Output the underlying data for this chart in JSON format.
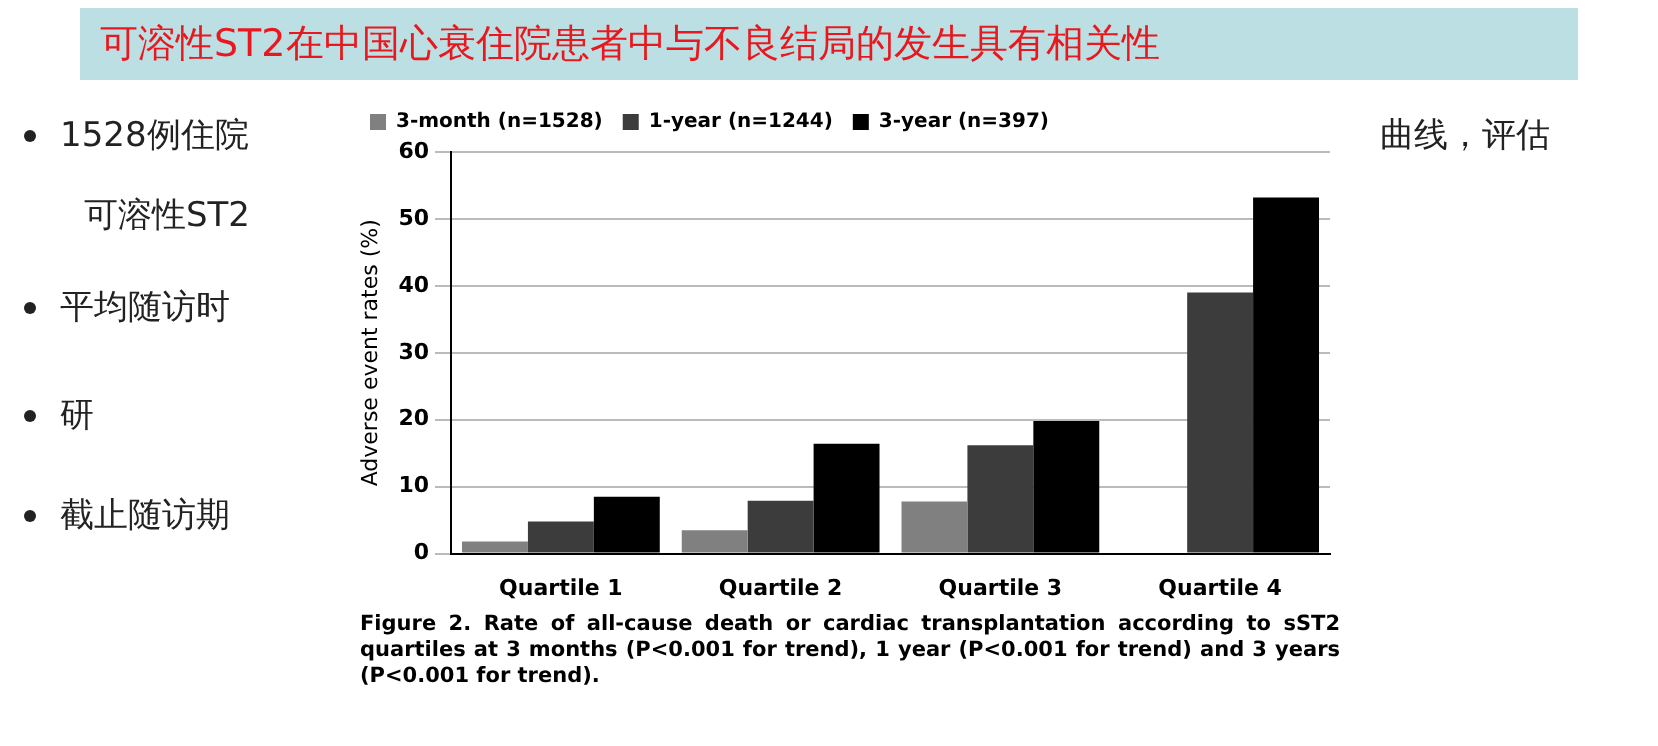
{
  "chart_data": {
    "type": "bar",
    "title": "可溶性ST2在中国心衰住院患者中与不良结局的发生具有相关性",
    "ylabel": "Adverse event rates (%)",
    "categories": [
      "Quartile 1",
      "Quartile 2",
      "Quartile 3",
      "Quartile 4"
    ],
    "series": [
      {
        "name": "3-month (n=1528)",
        "color": "#808080",
        "values": [
          1.8,
          3.5,
          7.8,
          null
        ]
      },
      {
        "name": "1-year (n=1244)",
        "color": "#3c3c3c",
        "values": [
          4.8,
          7.9,
          16.2,
          39
        ]
      },
      {
        "name": "3-year (n=397)",
        "color": "#000000",
        "values": [
          8.5,
          16.4,
          19.8,
          53.2
        ]
      }
    ],
    "ylim": [
      0,
      60
    ],
    "yticks": [
      0,
      10,
      20,
      30,
      40,
      50,
      60
    ],
    "grid": "y",
    "legend": "top left",
    "annotations": [
      "Figure 2. Rate of all-cause death or cardiac transplantation according to sST2 quartiles at 3 months (P<0.001 for trend), 1 year (P<0.001 for trend) and 3 years (P<0.001 for trend).",
      "1528例住院",
      "可溶性ST2",
      "平均随访时",
      "研",
      "截止随访期",
      "曲线，评估"
    ]
  }
}
